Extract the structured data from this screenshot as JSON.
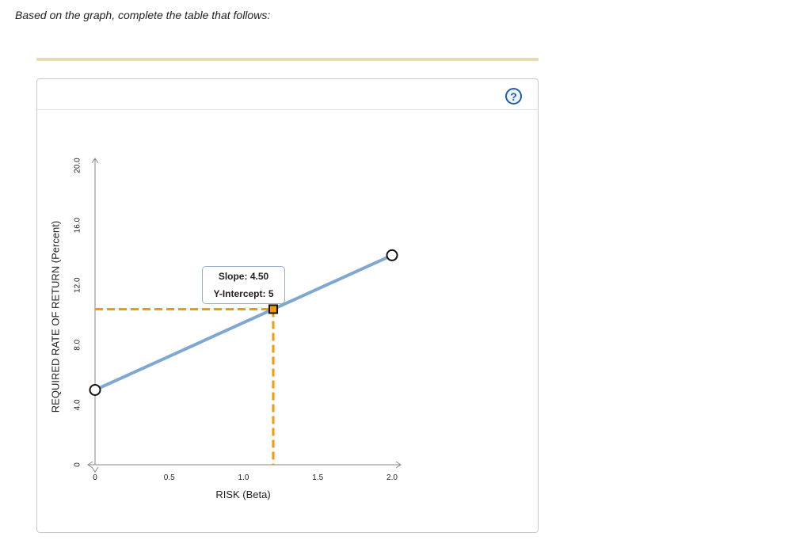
{
  "page": {
    "instruction": "Based on the graph, complete the table that follows:",
    "help_symbol": "?"
  },
  "tooltip": {
    "slope_label": "Slope: 4.50",
    "intercept_label": "Y-Intercept: 5"
  },
  "chart_data": {
    "type": "line",
    "xlabel": "RISK (Beta)",
    "ylabel": "REQUIRED RATE OF RETURN (Percent)",
    "xlim": [
      0,
      2.0
    ],
    "ylim": [
      0,
      20.0
    ],
    "x_ticks": [
      0,
      0.5,
      1.0,
      1.5,
      2.0
    ],
    "x_tick_labels": [
      "0",
      "0.5",
      "1.0",
      "1.5",
      "2.0"
    ],
    "y_ticks": [
      0,
      4,
      8,
      12,
      16,
      20
    ],
    "y_tick_labels": [
      "0",
      "4.0",
      "8.0",
      "12.0",
      "16.0",
      "20.0"
    ],
    "series": [
      {
        "type": "line",
        "color": "#7ea8d2",
        "points": [
          {
            "x": 0,
            "y": 5
          },
          {
            "x": 2.0,
            "y": 14
          }
        ]
      }
    ],
    "guide_point": {
      "x": 1.2,
      "y": 10.4,
      "color": "#f29a00"
    }
  }
}
